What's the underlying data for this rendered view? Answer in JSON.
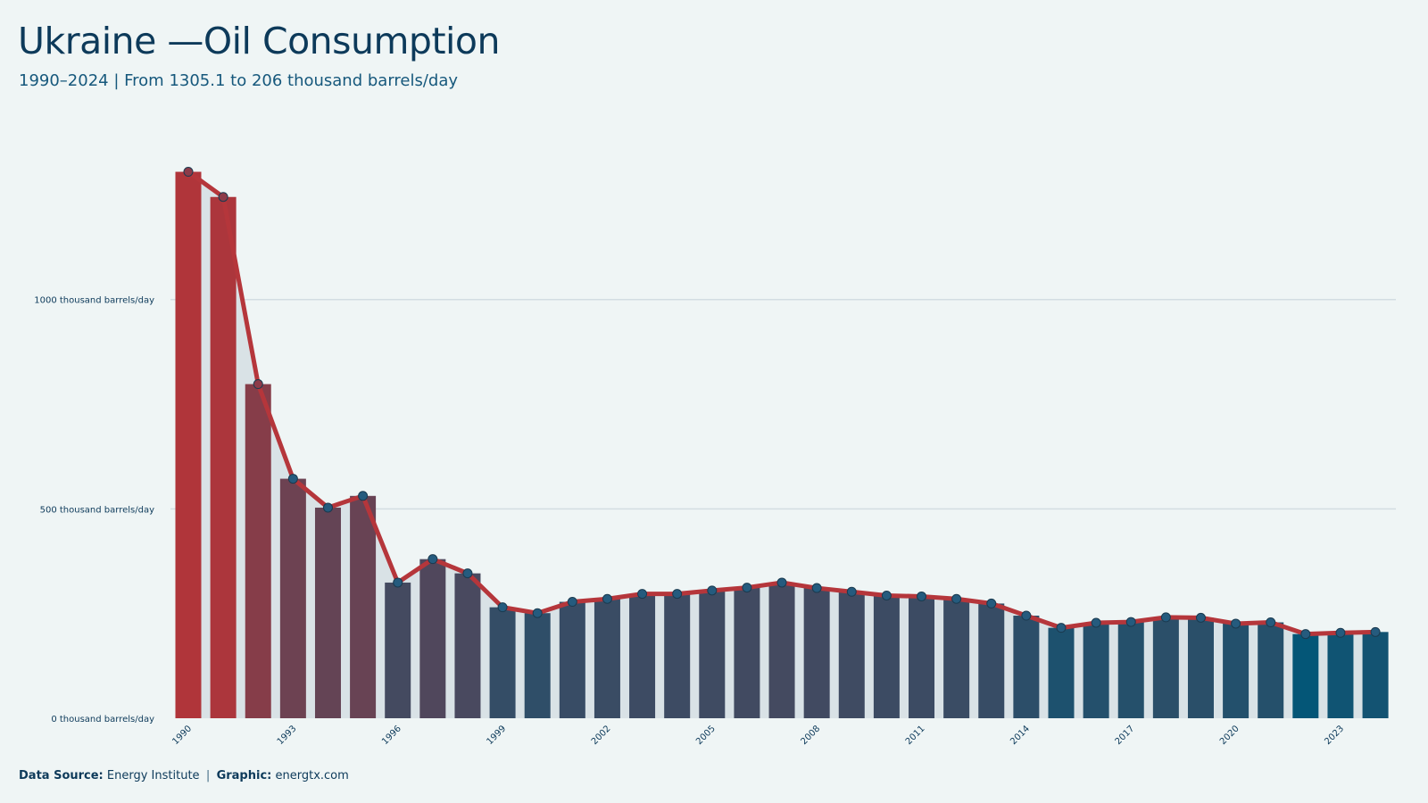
{
  "title": "Ukraine —Oil Consumption",
  "subtitle": "1990–2024 | From 1305.1  to 206 thousand barrels/day",
  "footer": {
    "source_label": "Data Source:",
    "source_value": "Energy Institute",
    "separator": "|",
    "graphic_label": "Graphic:",
    "graphic_value": "energtx.com"
  },
  "colors": {
    "high": "#b0353a",
    "low": "#045677",
    "line": "#b5363b",
    "point": "#255b7e",
    "grid": "#d3dde2",
    "text": "#0d3a5a"
  },
  "chart_data": {
    "type": "bar",
    "title": "Ukraine —Oil Consumption",
    "subtitle": "1990–2024 | From 1305.1  to 206 thousand barrels/day",
    "xlabel": "",
    "ylabel": "",
    "unit": "thousand barrels/day",
    "ylim": [
      0,
      1350
    ],
    "yticks": [
      0,
      500,
      1000
    ],
    "ytick_labels": [
      "0 thousand barrels/day",
      "500 thousand barrels/day",
      "1000 thousand barrels/day"
    ],
    "grid": true,
    "overlay": "line with markers",
    "categories": [
      1990,
      1991,
      1992,
      1993,
      1994,
      1995,
      1996,
      1997,
      1998,
      1999,
      2000,
      2001,
      2002,
      2003,
      2004,
      2005,
      2006,
      2007,
      2008,
      2009,
      2010,
      2011,
      2012,
      2013,
      2014,
      2015,
      2016,
      2017,
      2018,
      2019,
      2020,
      2021,
      2022,
      2023,
      2024
    ],
    "xtick_labels": [
      "1990",
      "1993",
      "1996",
      "1999",
      "2002",
      "2005",
      "2008",
      "2011",
      "2014",
      "2017",
      "2020",
      "2023"
    ],
    "values": [
      1305.1,
      1245,
      798,
      572,
      503,
      531,
      324,
      380,
      346,
      265,
      251,
      278,
      285,
      297,
      297,
      305,
      312,
      324,
      311,
      302,
      293,
      291,
      285,
      274,
      245,
      216,
      228,
      230,
      241,
      240,
      226,
      229,
      201,
      204,
      206
    ]
  }
}
